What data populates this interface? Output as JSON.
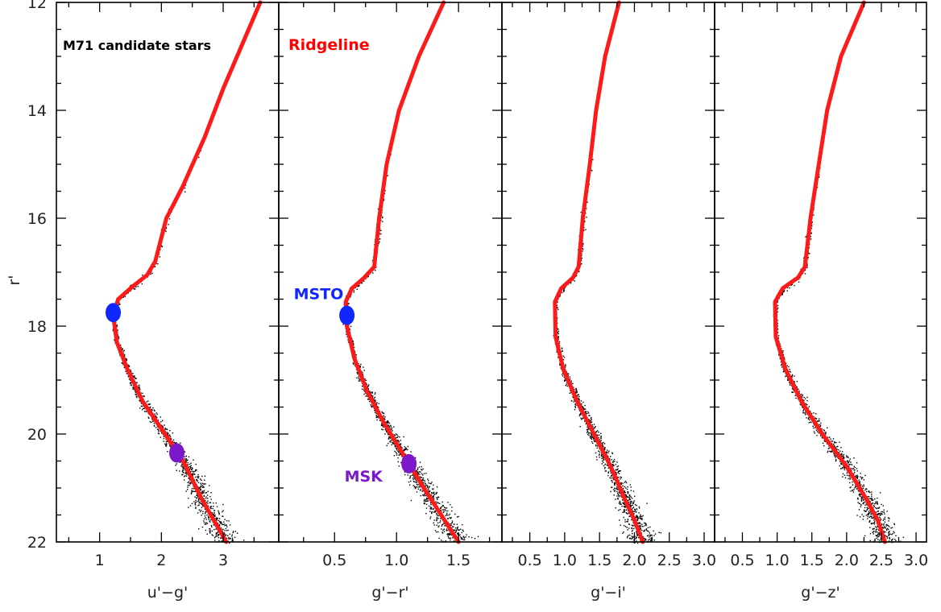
{
  "chart_data": {
    "type": "scatter",
    "ylabel": "r'",
    "ylim": [
      22,
      12
    ],
    "y_ticks": [
      "12",
      "14",
      "16",
      "18",
      "20",
      "22"
    ],
    "y_tick_values": [
      12,
      14,
      16,
      18,
      20,
      22
    ],
    "grid": false,
    "panels": [
      {
        "xlabel": "u'−g'",
        "xlim": [
          0.3,
          3.9
        ],
        "x_ticks": [
          "1",
          "2",
          "3"
        ],
        "x_tick_values": [
          1,
          2,
          3
        ],
        "annotation": {
          "text": "M71 candidate stars",
          "color": "#000000"
        },
        "ridgeline": {
          "color": "#ff0000",
          "points": [
            [
              3.6,
              12.0
            ],
            [
              3.3,
              12.8
            ],
            [
              3.0,
              13.6
            ],
            [
              2.7,
              14.5
            ],
            [
              2.35,
              15.4
            ],
            [
              2.08,
              16.0
            ],
            [
              1.9,
              16.8
            ],
            [
              1.77,
              17.05
            ],
            [
              1.55,
              17.25
            ],
            [
              1.3,
              17.5
            ],
            [
              1.22,
              17.8
            ],
            [
              1.28,
              18.3
            ],
            [
              1.45,
              18.8
            ],
            [
              1.7,
              19.4
            ],
            [
              2.0,
              19.9
            ],
            [
              2.35,
              20.5
            ],
            [
              2.65,
              21.2
            ],
            [
              2.9,
              21.7
            ],
            [
              3.05,
              22.0
            ]
          ]
        },
        "markers": [
          {
            "label": "MSTO",
            "x": 1.22,
            "y": 17.75,
            "color": "#1028ff"
          },
          {
            "label": "MSK",
            "x": 2.25,
            "y": 20.35,
            "color": "#7b18c9"
          }
        ]
      },
      {
        "xlabel": "g'−r'",
        "xlim": [
          0.05,
          1.85
        ],
        "x_ticks": [
          "0.5",
          "1.0",
          "1.5"
        ],
        "x_tick_values": [
          0.5,
          1.0,
          1.5
        ],
        "annotation": {
          "text": "Ridgeline",
          "color": "#ff0000"
        },
        "ridgeline": {
          "color": "#ff0000",
          "points": [
            [
              1.38,
              12.0
            ],
            [
              1.18,
              13.0
            ],
            [
              1.02,
              14.0
            ],
            [
              0.92,
              15.0
            ],
            [
              0.86,
              16.0
            ],
            [
              0.82,
              16.9
            ],
            [
              0.74,
              17.1
            ],
            [
              0.64,
              17.3
            ],
            [
              0.59,
              17.55
            ],
            [
              0.6,
              18.0
            ],
            [
              0.66,
              18.6
            ],
            [
              0.76,
              19.2
            ],
            [
              0.9,
              19.8
            ],
            [
              1.06,
              20.4
            ],
            [
              1.22,
              21.0
            ],
            [
              1.36,
              21.5
            ],
            [
              1.5,
              22.0
            ]
          ]
        },
        "markers": [
          {
            "label": "MSTO",
            "x": 0.6,
            "y": 17.8,
            "color": "#1028ff"
          },
          {
            "label": "MSK",
            "x": 1.1,
            "y": 20.55,
            "color": "#7b18c9"
          }
        ]
      },
      {
        "xlabel": "g'−i'",
        "xlim": [
          0.1,
          3.15
        ],
        "x_ticks": [
          "0.5",
          "1.0",
          "1.5",
          "2.0",
          "2.5",
          "3.0"
        ],
        "x_tick_values": [
          0.5,
          1.0,
          1.5,
          2.0,
          2.5,
          3.0
        ],
        "ridgeline": {
          "color": "#ff0000",
          "points": [
            [
              1.78,
              12.0
            ],
            [
              1.58,
              13.0
            ],
            [
              1.45,
              14.0
            ],
            [
              1.36,
              15.0
            ],
            [
              1.26,
              16.0
            ],
            [
              1.2,
              16.9
            ],
            [
              1.12,
              17.1
            ],
            [
              0.95,
              17.3
            ],
            [
              0.86,
              17.55
            ],
            [
              0.87,
              18.2
            ],
            [
              0.98,
              18.8
            ],
            [
              1.18,
              19.4
            ],
            [
              1.42,
              20.0
            ],
            [
              1.66,
              20.6
            ],
            [
              1.86,
              21.2
            ],
            [
              2.0,
              21.6
            ],
            [
              2.12,
              22.0
            ]
          ]
        }
      },
      {
        "xlabel": "g'−z'",
        "xlim": [
          0.1,
          3.15
        ],
        "x_ticks": [
          "0.5",
          "1.0",
          "1.5",
          "2.0",
          "2.5",
          "3.0"
        ],
        "x_tick_values": [
          0.5,
          1.0,
          1.5,
          2.0,
          2.5,
          3.0
        ],
        "ridgeline": {
          "color": "#ff0000",
          "points": [
            [
              2.25,
              12.0
            ],
            [
              1.92,
              13.0
            ],
            [
              1.72,
              14.0
            ],
            [
              1.6,
              15.0
            ],
            [
              1.48,
              16.0
            ],
            [
              1.4,
              16.9
            ],
            [
              1.3,
              17.1
            ],
            [
              1.08,
              17.3
            ],
            [
              0.97,
              17.55
            ],
            [
              0.98,
              18.2
            ],
            [
              1.12,
              18.8
            ],
            [
              1.35,
              19.4
            ],
            [
              1.65,
              20.0
            ],
            [
              2.0,
              20.6
            ],
            [
              2.28,
              21.2
            ],
            [
              2.45,
              21.6
            ],
            [
              2.55,
              22.0
            ]
          ]
        }
      }
    ]
  },
  "style": {
    "star_color": "#000000",
    "frame_color": "#000000"
  }
}
